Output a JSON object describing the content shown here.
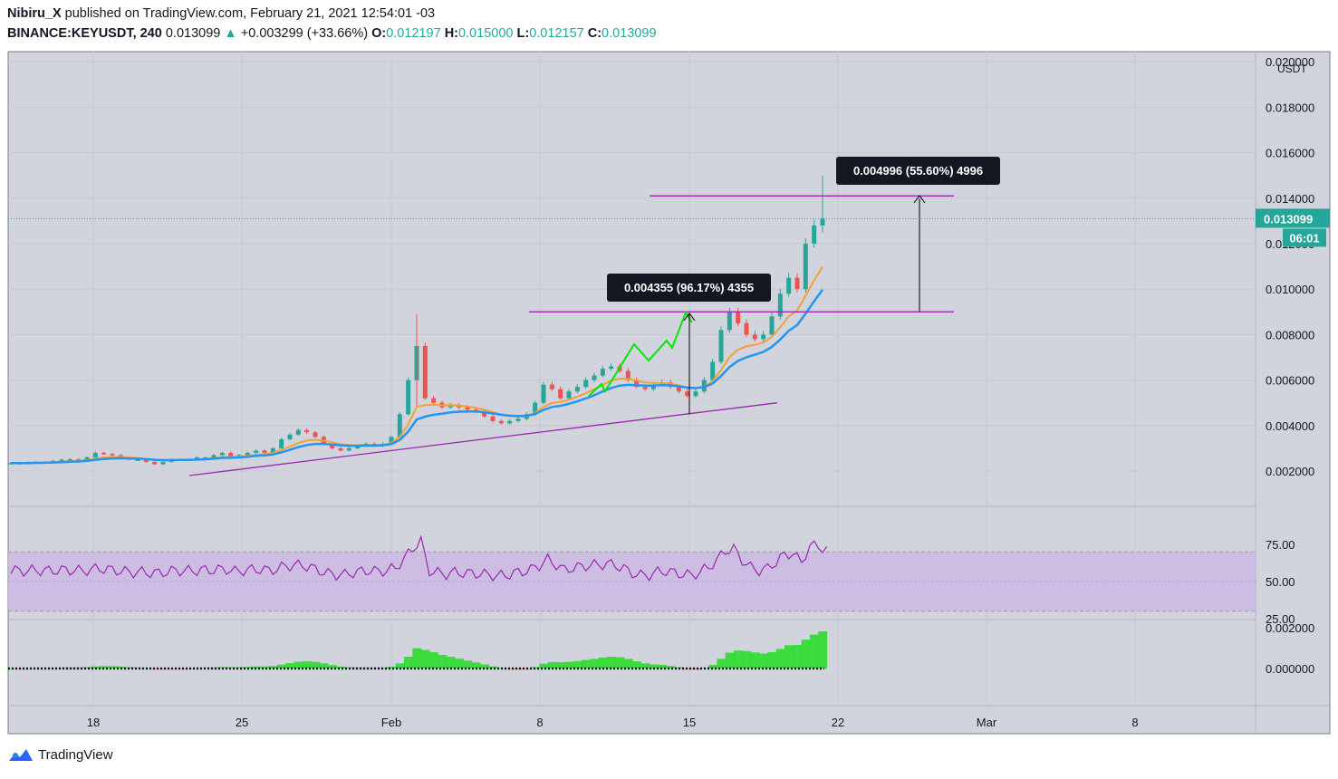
{
  "header": {
    "publisher": "Nibiru_X",
    "published_text": "published on TradingView.com, February 21, 2021 12:54:01 -03",
    "symbol": "BINANCE:KEYUSDT, 240",
    "price": "0.013099",
    "change": "+0.003299 (+33.66%)",
    "open_label": "O:",
    "open": "0.012197",
    "high_label": "H:",
    "high": "0.015000",
    "low_label": "L:",
    "low": "0.012157",
    "close_label": "C:",
    "close": "0.013099"
  },
  "chart_data": [
    {
      "type": "candlestick",
      "currency_label": "USDT",
      "y_ticks": [
        "0.002000",
        "0.004000",
        "0.006000",
        "0.008000",
        "0.010000",
        "0.012000",
        "0.014000",
        "0.016000",
        "0.018000",
        "0.020000"
      ],
      "ylim": [
        0,
        0.02
      ],
      "x_ticks": [
        "18",
        "25",
        "Feb",
        "8",
        "15",
        "22",
        "Mar",
        "8"
      ],
      "last_price_label": "0.013099",
      "countdown_label": "06:01",
      "close_series": [
        0.00235,
        0.00232,
        0.00238,
        0.0024,
        0.00238,
        0.00245,
        0.0025,
        0.00252,
        0.00248,
        0.0026,
        0.0028,
        0.00275,
        0.0027,
        0.0026,
        0.0025,
        0.0025,
        0.0024,
        0.0023,
        0.0024,
        0.0025,
        0.0025,
        0.0025,
        0.0026,
        0.0026,
        0.0027,
        0.0028,
        0.0026,
        0.0027,
        0.0028,
        0.0029,
        0.0028,
        0.003,
        0.0034,
        0.0036,
        0.0038,
        0.0037,
        0.0035,
        0.0032,
        0.003,
        0.0029,
        0.003,
        0.0031,
        0.0032,
        0.0031,
        0.0032,
        0.0035,
        0.0045,
        0.006,
        0.0075,
        0.0052,
        0.005,
        0.0048,
        0.0049,
        0.0048,
        0.0047,
        0.0046,
        0.0044,
        0.0042,
        0.0041,
        0.0042,
        0.0043,
        0.0045,
        0.005,
        0.0058,
        0.0056,
        0.0052,
        0.0055,
        0.0057,
        0.006,
        0.0062,
        0.0065,
        0.0066,
        0.0064,
        0.006,
        0.0057,
        0.0056,
        0.0058,
        0.0059,
        0.0057,
        0.0055,
        0.0053,
        0.0055,
        0.006,
        0.0068,
        0.0082,
        0.009,
        0.0085,
        0.008,
        0.0078,
        0.008,
        0.0088,
        0.0098,
        0.0105,
        0.01,
        0.012,
        0.0128,
        0.0131
      ],
      "annotations": [
        {
          "label": "0.004996 (55.60%) 4996"
        },
        {
          "label": "0.004355 (96.17%) 4355"
        }
      ]
    },
    {
      "type": "line",
      "name": "RSI",
      "y_ticks": [
        "25.00",
        "50.00",
        "75.00"
      ],
      "ylim": [
        25,
        100
      ],
      "band": [
        30,
        70
      ]
    },
    {
      "type": "histogram",
      "name": "MACD",
      "y_ticks": [
        "0.000000",
        "0.002000"
      ]
    }
  ],
  "colors": {
    "up": "#26a69a",
    "down": "#ef5350",
    "ema_fast": "#f5a033",
    "ema_slow": "#2196f3",
    "trendline": "#9c27b0",
    "green_line": "#00e600",
    "rsi": "#9c27b0",
    "rsi_band": "#cbb5e6",
    "hist_up": "#22dd22",
    "hist_down": "#e53935",
    "bg": "#d1d4dc"
  },
  "footer": {
    "brand": "TradingView"
  }
}
